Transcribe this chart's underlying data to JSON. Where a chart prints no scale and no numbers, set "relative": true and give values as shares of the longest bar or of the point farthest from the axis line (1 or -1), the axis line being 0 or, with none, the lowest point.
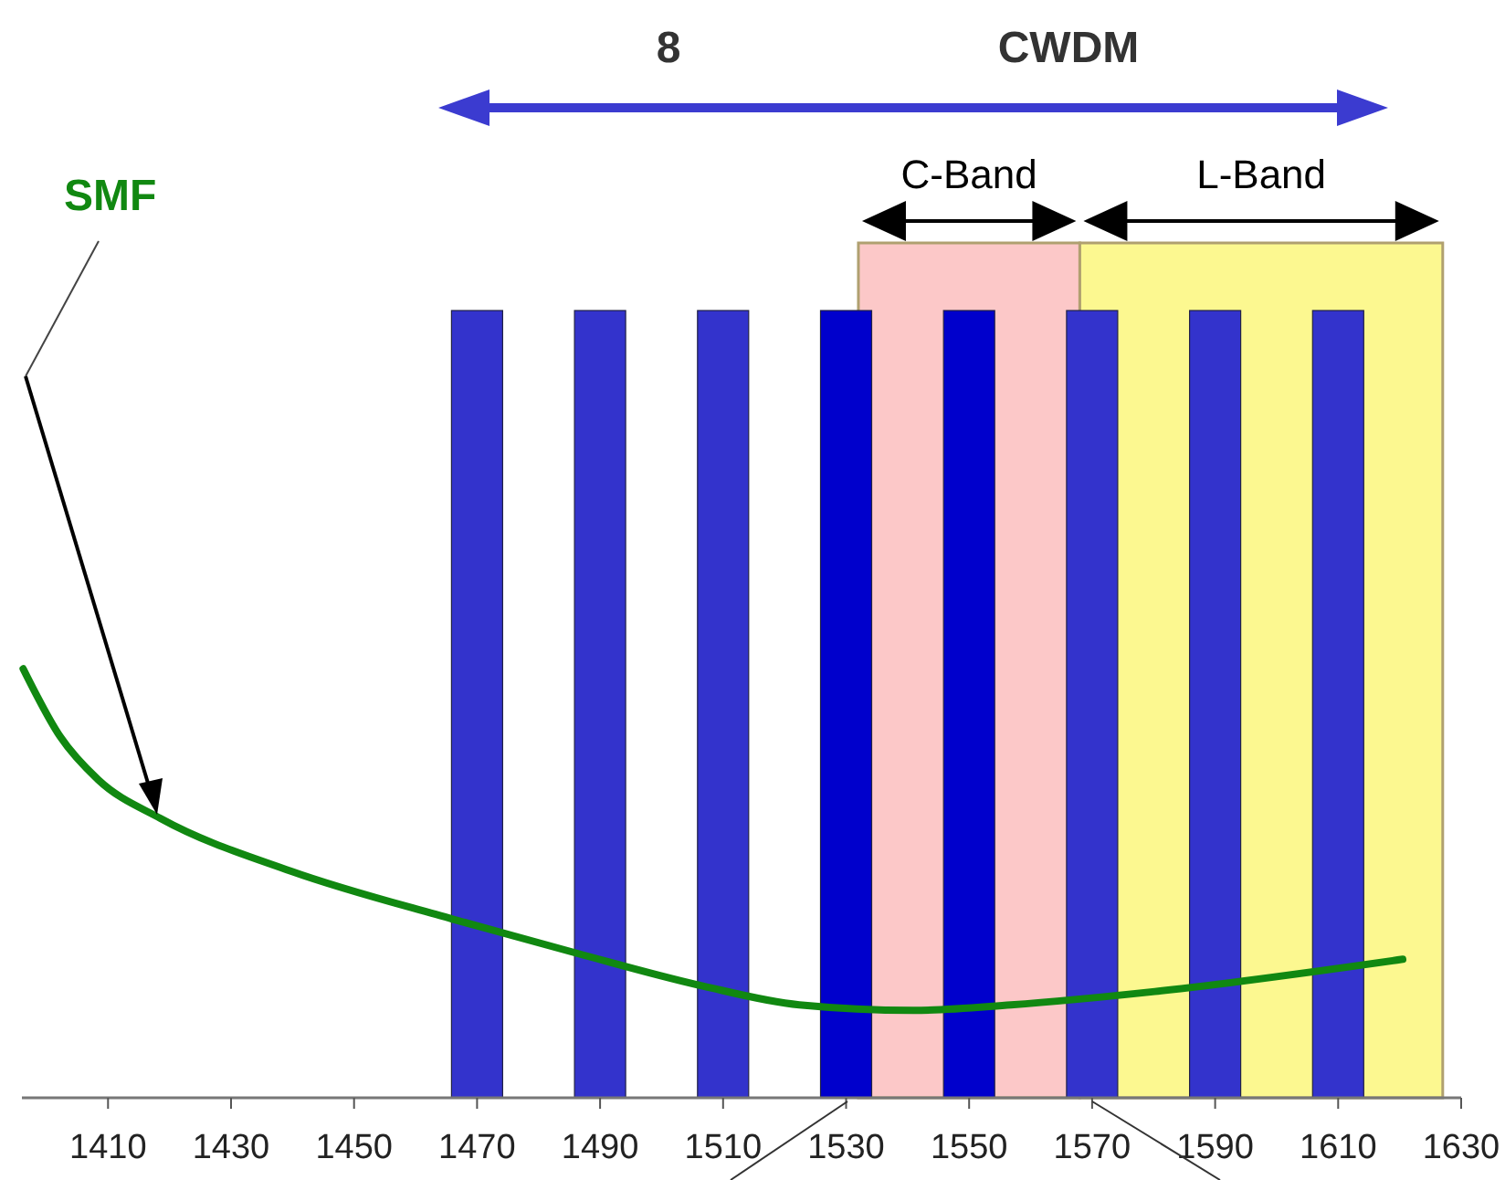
{
  "chart_data": {
    "type": "bar",
    "relative": true,
    "xlim": [
      1396,
      1630
    ],
    "xticks": [
      1410,
      1430,
      1450,
      1470,
      1490,
      1510,
      1530,
      1550,
      1570,
      1590,
      1610,
      1630
    ],
    "series": [
      {
        "x": [
          1470,
          1490,
          1510,
          1530,
          1550,
          1570,
          1590,
          1610
        ],
        "values": [
          1,
          1,
          1,
          1,
          1,
          1,
          1,
          1
        ],
        "colors": [
          "#3333cc",
          "#3333cc",
          "#3333cc",
          "#0000cc",
          "#0000cc",
          "#3333cc",
          "#3333cc",
          "#3333cc"
        ]
      },
      {
        "type": "line",
        "name": "SMF",
        "color": "#118811",
        "x": [
          1396.2,
          1402.2,
          1408.4,
          1418.5,
          1439.7,
          1466,
          1486.5,
          1506.7,
          1522.4,
          1541,
          1556.8,
          1580.2,
          1620.5
        ],
        "values": [
          0.545,
          0.459,
          0.404,
          0.355,
          0.288,
          0.227,
          0.183,
          0.142,
          0.118,
          0.111,
          0.118,
          0.135,
          0.176
        ]
      }
    ],
    "bands": [
      {
        "axis": "x",
        "from": 1532,
        "to": 1568,
        "label": "C-Band",
        "color": "#fcc8c8"
      },
      {
        "axis": "x",
        "from": 1568,
        "to": 1627,
        "label": "L-Band",
        "color": "#fcf890"
      }
    ],
    "annotations": [
      "8",
      "CWDM"
    ]
  }
}
